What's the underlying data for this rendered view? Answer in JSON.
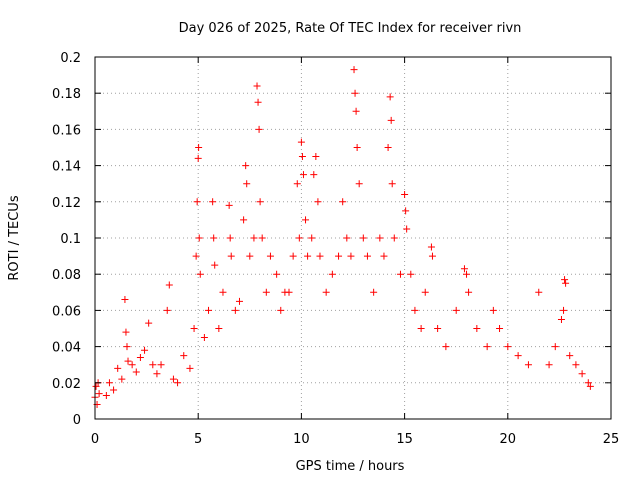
{
  "chart_data": {
    "type": "scatter",
    "title": "Day 026 of 2025, Rate Of TEC Index for receiver rivn",
    "xlabel": "GPS time / hours",
    "ylabel": "ROTI / TECUs",
    "xlim": [
      0,
      25
    ],
    "ylim": [
      0,
      0.2
    ],
    "xticks": [
      0,
      5,
      10,
      15,
      20,
      25
    ],
    "xtick_labels": [
      "0",
      "5",
      "10",
      "15",
      "20",
      "25"
    ],
    "yticks": [
      0,
      0.02,
      0.04,
      0.06,
      0.08,
      0.1,
      0.12,
      0.14,
      0.16,
      0.18,
      0.2
    ],
    "ytick_labels": [
      "0",
      "0.02",
      "0.04",
      "0.06",
      "0.08",
      "0.1",
      "0.12",
      "0.14",
      "0.16",
      "0.18",
      "0.2"
    ],
    "grid": true,
    "marker": "+",
    "color": "#ff0000",
    "series": [
      {
        "points": [
          [
            0.0,
            0.012
          ],
          [
            0.05,
            0.018
          ],
          [
            0.1,
            0.008
          ],
          [
            0.15,
            0.02
          ],
          [
            0.2,
            0.014
          ],
          [
            0.55,
            0.013
          ],
          [
            0.7,
            0.02
          ],
          [
            0.9,
            0.016
          ],
          [
            1.1,
            0.028
          ],
          [
            1.3,
            0.022
          ],
          [
            1.45,
            0.066
          ],
          [
            1.5,
            0.048
          ],
          [
            1.55,
            0.04
          ],
          [
            1.6,
            0.032
          ],
          [
            1.8,
            0.03
          ],
          [
            2.0,
            0.026
          ],
          [
            2.2,
            0.034
          ],
          [
            2.4,
            0.038
          ],
          [
            2.6,
            0.053
          ],
          [
            2.8,
            0.03
          ],
          [
            3.0,
            0.025
          ],
          [
            3.2,
            0.03
          ],
          [
            3.5,
            0.06
          ],
          [
            3.6,
            0.074
          ],
          [
            3.8,
            0.022
          ],
          [
            4.0,
            0.02
          ],
          [
            4.3,
            0.035
          ],
          [
            4.6,
            0.028
          ],
          [
            4.8,
            0.05
          ],
          [
            4.9,
            0.09
          ],
          [
            4.95,
            0.12
          ],
          [
            5.0,
            0.144
          ],
          [
            5.02,
            0.15
          ],
          [
            5.05,
            0.1
          ],
          [
            5.1,
            0.08
          ],
          [
            5.3,
            0.045
          ],
          [
            5.5,
            0.06
          ],
          [
            5.7,
            0.12
          ],
          [
            5.75,
            0.1
          ],
          [
            5.8,
            0.085
          ],
          [
            6.0,
            0.05
          ],
          [
            6.2,
            0.07
          ],
          [
            6.5,
            0.118
          ],
          [
            6.55,
            0.1
          ],
          [
            6.6,
            0.09
          ],
          [
            6.8,
            0.06
          ],
          [
            7.0,
            0.065
          ],
          [
            7.2,
            0.11
          ],
          [
            7.3,
            0.14
          ],
          [
            7.35,
            0.13
          ],
          [
            7.5,
            0.09
          ],
          [
            7.7,
            0.1
          ],
          [
            7.85,
            0.184
          ],
          [
            7.9,
            0.175
          ],
          [
            7.95,
            0.16
          ],
          [
            8.0,
            0.12
          ],
          [
            8.1,
            0.1
          ],
          [
            8.3,
            0.07
          ],
          [
            8.5,
            0.09
          ],
          [
            8.8,
            0.08
          ],
          [
            9.0,
            0.06
          ],
          [
            9.2,
            0.07
          ],
          [
            9.4,
            0.07
          ],
          [
            9.6,
            0.09
          ],
          [
            9.8,
            0.13
          ],
          [
            9.9,
            0.1
          ],
          [
            10.0,
            0.153
          ],
          [
            10.05,
            0.145
          ],
          [
            10.1,
            0.135
          ],
          [
            10.2,
            0.11
          ],
          [
            10.3,
            0.09
          ],
          [
            10.5,
            0.1
          ],
          [
            10.6,
            0.135
          ],
          [
            10.7,
            0.145
          ],
          [
            10.8,
            0.12
          ],
          [
            10.9,
            0.09
          ],
          [
            11.2,
            0.07
          ],
          [
            11.5,
            0.08
          ],
          [
            11.8,
            0.09
          ],
          [
            12.0,
            0.12
          ],
          [
            12.2,
            0.1
          ],
          [
            12.4,
            0.09
          ],
          [
            12.55,
            0.193
          ],
          [
            12.6,
            0.18
          ],
          [
            12.65,
            0.17
          ],
          [
            12.7,
            0.15
          ],
          [
            12.8,
            0.13
          ],
          [
            13.0,
            0.1
          ],
          [
            13.2,
            0.09
          ],
          [
            13.5,
            0.07
          ],
          [
            13.8,
            0.1
          ],
          [
            14.0,
            0.09
          ],
          [
            14.2,
            0.15
          ],
          [
            14.3,
            0.178
          ],
          [
            14.35,
            0.165
          ],
          [
            14.4,
            0.13
          ],
          [
            14.5,
            0.1
          ],
          [
            14.8,
            0.08
          ],
          [
            15.0,
            0.124
          ],
          [
            15.05,
            0.115
          ],
          [
            15.1,
            0.105
          ],
          [
            15.3,
            0.08
          ],
          [
            15.5,
            0.06
          ],
          [
            15.8,
            0.05
          ],
          [
            16.0,
            0.07
          ],
          [
            16.3,
            0.095
          ],
          [
            16.35,
            0.09
          ],
          [
            16.6,
            0.05
          ],
          [
            17.0,
            0.04
          ],
          [
            17.5,
            0.06
          ],
          [
            17.9,
            0.083
          ],
          [
            18.0,
            0.08
          ],
          [
            18.1,
            0.07
          ],
          [
            18.5,
            0.05
          ],
          [
            19.0,
            0.04
          ],
          [
            19.3,
            0.06
          ],
          [
            19.6,
            0.05
          ],
          [
            20.0,
            0.04
          ],
          [
            20.5,
            0.035
          ],
          [
            21.0,
            0.03
          ],
          [
            21.5,
            0.07
          ],
          [
            22.0,
            0.03
          ],
          [
            22.3,
            0.04
          ],
          [
            22.6,
            0.055
          ],
          [
            22.7,
            0.06
          ],
          [
            22.75,
            0.077
          ],
          [
            22.8,
            0.075
          ],
          [
            23.0,
            0.035
          ],
          [
            23.3,
            0.03
          ],
          [
            23.6,
            0.025
          ],
          [
            23.9,
            0.02
          ],
          [
            24.0,
            0.018
          ]
        ]
      }
    ]
  }
}
